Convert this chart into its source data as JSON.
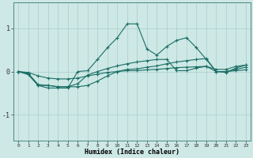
{
  "xlabel": "Humidex (Indice chaleur)",
  "ylabel": "",
  "bg_color": "#cde8e5",
  "line_color": "#1a6e65",
  "grid_color": "#aacfcc",
  "xlim": [
    -0.5,
    23.5
  ],
  "ylim": [
    -1.6,
    1.6
  ],
  "yticks": [
    -1,
    0,
    1
  ],
  "xticks": [
    0,
    1,
    2,
    3,
    4,
    5,
    6,
    7,
    8,
    9,
    10,
    11,
    12,
    13,
    14,
    15,
    16,
    17,
    18,
    19,
    20,
    21,
    22,
    23
  ],
  "series": [
    [
      0.0,
      -0.07,
      -0.32,
      -0.38,
      -0.38,
      -0.38,
      0.0,
      0.02,
      0.28,
      0.55,
      0.78,
      1.1,
      1.1,
      0.52,
      0.38,
      0.58,
      0.72,
      0.78,
      0.55,
      0.28,
      0.0,
      -0.02,
      0.08,
      0.15
    ],
    [
      0.0,
      -0.06,
      -0.32,
      -0.32,
      -0.35,
      -0.35,
      -0.28,
      -0.08,
      0.0,
      0.07,
      0.13,
      0.18,
      0.22,
      0.25,
      0.28,
      0.28,
      0.02,
      0.02,
      0.08,
      0.12,
      0.05,
      0.05,
      0.12,
      0.15
    ],
    [
      0.0,
      -0.04,
      -0.3,
      -0.32,
      -0.35,
      -0.35,
      -0.35,
      -0.32,
      -0.22,
      -0.1,
      0.0,
      0.05,
      0.06,
      0.1,
      0.13,
      0.18,
      0.22,
      0.25,
      0.28,
      0.3,
      0.0,
      0.0,
      0.05,
      0.1
    ],
    [
      0.0,
      -0.02,
      -0.1,
      -0.15,
      -0.17,
      -0.17,
      -0.15,
      -0.1,
      -0.06,
      -0.02,
      0.0,
      0.02,
      0.02,
      0.04,
      0.05,
      0.07,
      0.09,
      0.1,
      0.11,
      0.12,
      0.0,
      0.0,
      0.02,
      0.04
    ]
  ]
}
